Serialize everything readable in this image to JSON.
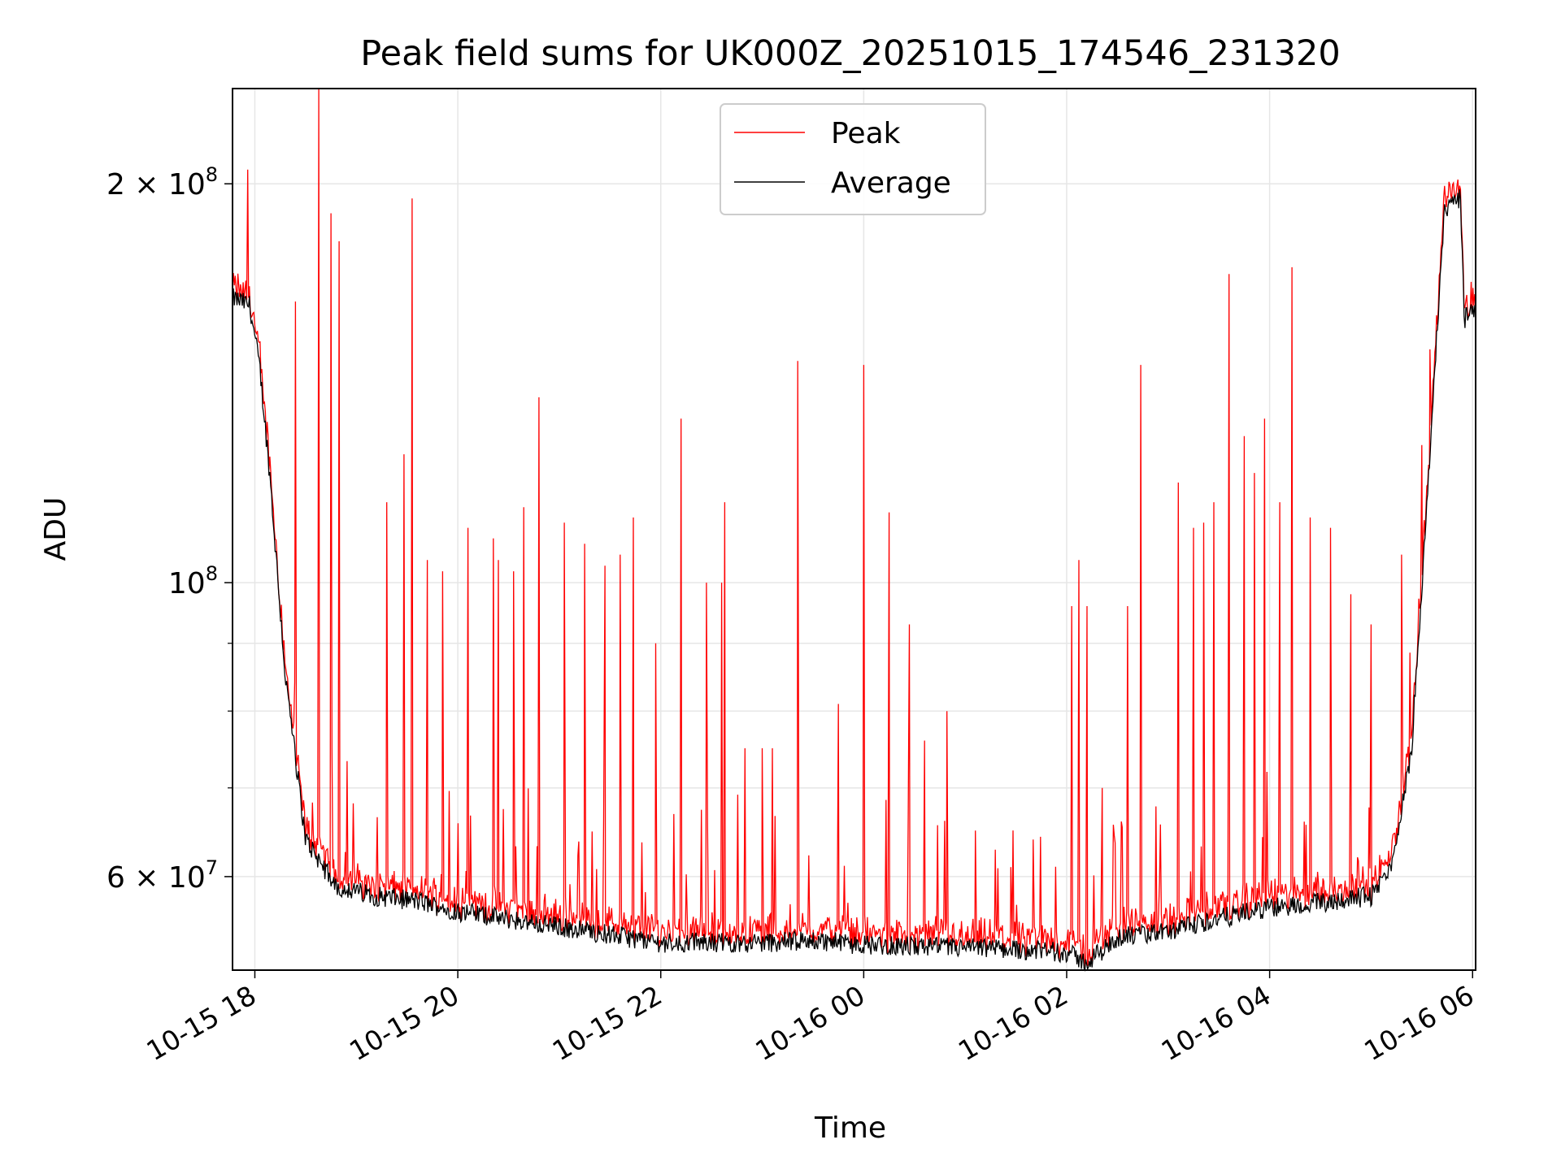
{
  "chart_data": {
    "type": "line",
    "title": "Peak field sums for UK000Z_20251015_174546_231320",
    "xlabel": "Time",
    "ylabel": "ADU",
    "yscale": "log",
    "ylim": [
      51000000,
      236000000
    ],
    "xlim_hours": [
      17.78,
      30.03
    ],
    "x_tick_labels": [
      "10-15 18",
      "10-15 20",
      "10-15 22",
      "10-16 00",
      "10-16 02",
      "10-16 04",
      "10-16 06"
    ],
    "x_tick_hours": [
      18,
      20,
      22,
      24,
      26,
      28,
      30
    ],
    "y_major_ticks": [
      {
        "value": 200000000,
        "mantissa": "2",
        "times": "×",
        "base": "10",
        "exp": "8"
      },
      {
        "value": 100000000,
        "mantissa": "",
        "times": "",
        "base": "10",
        "exp": "8"
      },
      {
        "value": 60000000,
        "mantissa": "6",
        "times": "×",
        "base": "10",
        "exp": "7"
      }
    ],
    "y_minor_grid": [
      70000000,
      80000000,
      90000000
    ],
    "grid": true,
    "legend_position": "top-center",
    "series": [
      {
        "name": "Peak",
        "color": "#ff0000"
      },
      {
        "name": "Average",
        "color": "#000000"
      }
    ],
    "average_profile": {
      "hours": [
        17.78,
        17.95,
        18.05,
        18.15,
        18.3,
        18.5,
        18.8,
        19.2,
        19.6,
        20.0,
        21.0,
        22.0,
        23.0,
        23.5,
        24.0,
        25.0,
        25.5,
        26.0,
        26.2,
        26.5,
        27.0,
        27.5,
        28.0,
        29.0,
        29.2,
        29.4,
        29.55,
        29.65,
        29.72,
        29.8,
        29.88,
        29.92,
        30.03
      ],
      "values": [
        164000000,
        162000000,
        145000000,
        120000000,
        85000000,
        64000000,
        59000000,
        58000000,
        57500000,
        56500000,
        55000000,
        53500000,
        53500000,
        53700000,
        53300000,
        53000000,
        52900000,
        52600000,
        51600000,
        54000000,
        54500000,
        55800000,
        56800000,
        58000000,
        61000000,
        75000000,
        115000000,
        155000000,
        190000000,
        193000000,
        195000000,
        158000000,
        162000000
      ]
    },
    "peak_spikes": [
      [
        17.93,
        205000000
      ],
      [
        18.4,
        163000000
      ],
      [
        18.63,
        236000000
      ],
      [
        18.75,
        190000000
      ],
      [
        18.83,
        181000000
      ],
      [
        19.3,
        115000000
      ],
      [
        19.47,
        125000000
      ],
      [
        19.55,
        195000000
      ],
      [
        19.7,
        104000000
      ],
      [
        19.85,
        102000000
      ],
      [
        20.1,
        110000000
      ],
      [
        20.35,
        108000000
      ],
      [
        20.4,
        104000000
      ],
      [
        20.55,
        102000000
      ],
      [
        20.65,
        114000000
      ],
      [
        20.8,
        138000000
      ],
      [
        21.05,
        111000000
      ],
      [
        21.25,
        107000000
      ],
      [
        21.45,
        103000000
      ],
      [
        21.6,
        105000000
      ],
      [
        21.73,
        112000000
      ],
      [
        21.95,
        90000000
      ],
      [
        22.2,
        133000000
      ],
      [
        22.45,
        100000000
      ],
      [
        22.6,
        100000000
      ],
      [
        22.63,
        115000000
      ],
      [
        22.83,
        75000000
      ],
      [
        23.0,
        75000000
      ],
      [
        23.1,
        75000000
      ],
      [
        23.35,
        147000000
      ],
      [
        23.75,
        81000000
      ],
      [
        24.0,
        146000000
      ],
      [
        24.25,
        113000000
      ],
      [
        24.45,
        93000000
      ],
      [
        24.6,
        76000000
      ],
      [
        24.82,
        80000000
      ],
      [
        25.1,
        65000000
      ],
      [
        25.45,
        61000000
      ],
      [
        25.67,
        64000000
      ],
      [
        26.05,
        96000000
      ],
      [
        26.12,
        104000000
      ],
      [
        26.2,
        96000000
      ],
      [
        26.35,
        70000000
      ],
      [
        26.6,
        96000000
      ],
      [
        26.73,
        146000000
      ],
      [
        27.1,
        119000000
      ],
      [
        27.25,
        110000000
      ],
      [
        27.35,
        111000000
      ],
      [
        27.45,
        115000000
      ],
      [
        27.6,
        171000000
      ],
      [
        27.75,
        129000000
      ],
      [
        27.85,
        121000000
      ],
      [
        27.95,
        133000000
      ],
      [
        28.1,
        115000000
      ],
      [
        28.22,
        173000000
      ],
      [
        28.4,
        112000000
      ],
      [
        28.6,
        110000000
      ],
      [
        28.8,
        98000000
      ],
      [
        29.0,
        93000000
      ],
      [
        29.3,
        105000000
      ],
      [
        29.5,
        127000000
      ],
      [
        29.58,
        150000000
      ]
    ]
  }
}
